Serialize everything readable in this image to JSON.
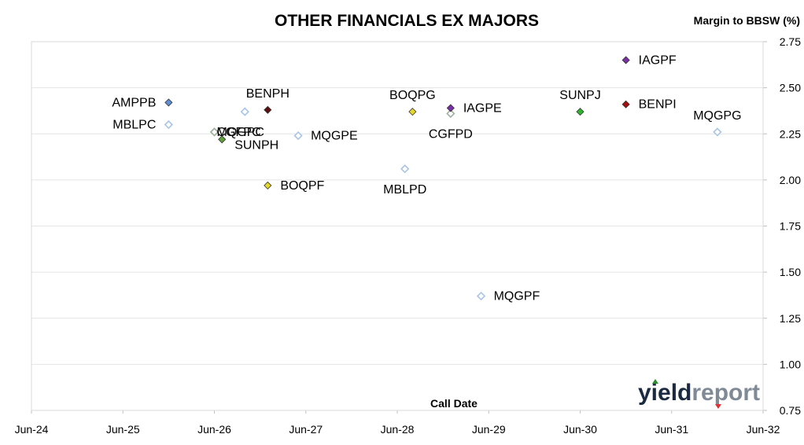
{
  "chart_data": {
    "type": "scatter",
    "title": "OTHER FINANCIALS EX MAJORS",
    "ylabel": "Margin to BBSW (%)",
    "xlabel": "Call Date",
    "ylim": [
      0.75,
      2.75
    ],
    "yticks": [
      "0.75",
      "1.00",
      "1.25",
      "1.50",
      "1.75",
      "2.00",
      "2.25",
      "2.50",
      "2.75"
    ],
    "xlim": [
      "2024-06",
      "2032-06"
    ],
    "xticks": [
      "Jun-24",
      "Jun-25",
      "Jun-26",
      "Jun-27",
      "Jun-28",
      "Jun-29",
      "Jun-30",
      "Jun-31",
      "Jun-32"
    ],
    "grid": "horizontal",
    "points": [
      {
        "name": "AMPPB",
        "x": "2025-12",
        "y": 2.42,
        "color": "#5b8fd6",
        "fill": "solid",
        "label_side": "left"
      },
      {
        "name": "MBLPC",
        "x": "2025-12",
        "y": 2.3,
        "color": "#a9c4e6",
        "fill": "hollow",
        "label_side": "left"
      },
      {
        "name": "MQGPC",
        "x": "2026-06",
        "y": 2.26,
        "color": "#7fa86b",
        "fill": "hollow",
        "label_side": "right"
      },
      {
        "name": "CGFPC",
        "x": "2026-06",
        "y": 2.26,
        "color": "#a0b0a0",
        "fill": "hollow",
        "label_side": "right"
      },
      {
        "name": "SUNPH",
        "x": "2026-07",
        "y": 2.22,
        "color": "#5ea03c",
        "fill": "solid",
        "label_side": "right-below"
      },
      {
        "name": "",
        "x": "2026-10",
        "y": 2.37,
        "color": "#a9c4e6",
        "fill": "hollow",
        "label_side": "none"
      },
      {
        "name": "BENPH",
        "x": "2027-01",
        "y": 2.38,
        "color": "#5a1010",
        "fill": "solid",
        "label_side": "above"
      },
      {
        "name": "BOQPF",
        "x": "2027-01",
        "y": 1.97,
        "color": "#e6d82a",
        "fill": "solid",
        "label_side": "right"
      },
      {
        "name": "MQGPE",
        "x": "2027-05",
        "y": 2.24,
        "color": "#a9c4e6",
        "fill": "hollow",
        "label_side": "right"
      },
      {
        "name": "MBLPD",
        "x": "2028-07",
        "y": 2.06,
        "color": "#a9c4e6",
        "fill": "hollow",
        "label_side": "below"
      },
      {
        "name": "BOQPG",
        "x": "2028-08",
        "y": 2.37,
        "color": "#e6d82a",
        "fill": "solid",
        "label_side": "above"
      },
      {
        "name": "CGFPD",
        "x": "2029-01",
        "y": 2.36,
        "color": "#a0b0a0",
        "fill": "hollow",
        "label_side": "below"
      },
      {
        "name": "IAGPE",
        "x": "2029-01",
        "y": 2.39,
        "color": "#7a2fa8",
        "fill": "solid",
        "label_side": "right"
      },
      {
        "name": "MQGPF",
        "x": "2029-05",
        "y": 1.37,
        "color": "#a9c4e6",
        "fill": "hollow",
        "label_side": "right"
      },
      {
        "name": "SUNPJ",
        "x": "2030-06",
        "y": 2.37,
        "color": "#2db52d",
        "fill": "solid",
        "label_side": "above"
      },
      {
        "name": "IAGPF",
        "x": "2030-12",
        "y": 2.65,
        "color": "#7a2fa8",
        "fill": "solid",
        "label_side": "right"
      },
      {
        "name": "BENPI",
        "x": "2030-12",
        "y": 2.41,
        "color": "#a01010",
        "fill": "solid",
        "label_side": "right"
      },
      {
        "name": "MQGPG",
        "x": "2031-12",
        "y": 2.26,
        "color": "#a9c4e6",
        "fill": "hollow",
        "label_side": "above"
      }
    ]
  },
  "logo": {
    "part1": "yield",
    "part2": "report",
    "arrow_up_color": "#2e8b2e",
    "arrow_down_color": "#e03030"
  }
}
